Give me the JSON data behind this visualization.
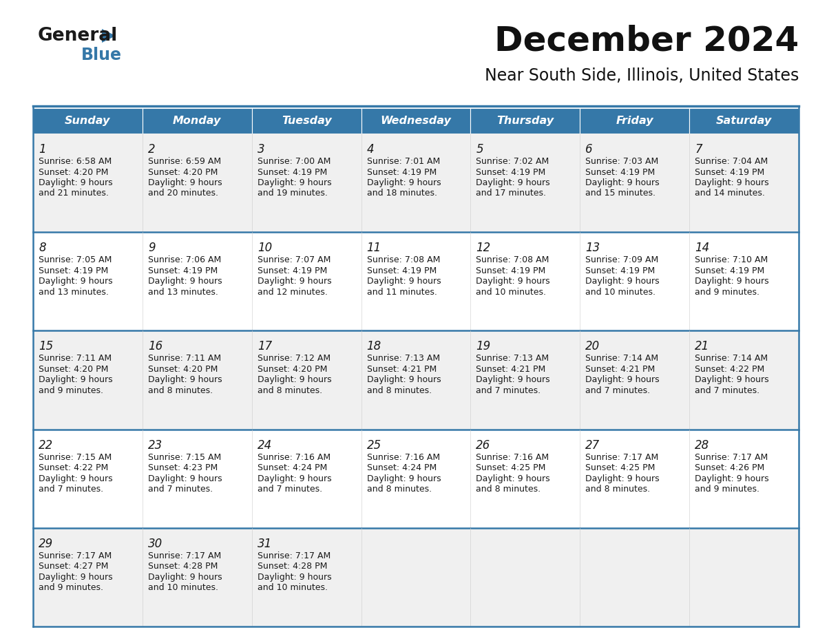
{
  "title": "December 2024",
  "subtitle": "Near South Side, Illinois, United States",
  "header_color": "#3578a8",
  "header_text_color": "#ffffff",
  "cell_bg_even": "#f0f0f0",
  "cell_bg_odd": "#ffffff",
  "border_color": "#3578a8",
  "line_color_week": "#3578a8",
  "text_color": "#1a1a1a",
  "day_names": [
    "Sunday",
    "Monday",
    "Tuesday",
    "Wednesday",
    "Thursday",
    "Friday",
    "Saturday"
  ],
  "weeks": [
    [
      {
        "day": "1",
        "sunrise": "6:58 AM",
        "sunset": "4:20 PM",
        "daylight1": "9 hours",
        "daylight2": "and 21 minutes."
      },
      {
        "day": "2",
        "sunrise": "6:59 AM",
        "sunset": "4:20 PM",
        "daylight1": "9 hours",
        "daylight2": "and 20 minutes."
      },
      {
        "day": "3",
        "sunrise": "7:00 AM",
        "sunset": "4:19 PM",
        "daylight1": "9 hours",
        "daylight2": "and 19 minutes."
      },
      {
        "day": "4",
        "sunrise": "7:01 AM",
        "sunset": "4:19 PM",
        "daylight1": "9 hours",
        "daylight2": "and 18 minutes."
      },
      {
        "day": "5",
        "sunrise": "7:02 AM",
        "sunset": "4:19 PM",
        "daylight1": "9 hours",
        "daylight2": "and 17 minutes."
      },
      {
        "day": "6",
        "sunrise": "7:03 AM",
        "sunset": "4:19 PM",
        "daylight1": "9 hours",
        "daylight2": "and 15 minutes."
      },
      {
        "day": "7",
        "sunrise": "7:04 AM",
        "sunset": "4:19 PM",
        "daylight1": "9 hours",
        "daylight2": "and 14 minutes."
      }
    ],
    [
      {
        "day": "8",
        "sunrise": "7:05 AM",
        "sunset": "4:19 PM",
        "daylight1": "9 hours",
        "daylight2": "and 13 minutes."
      },
      {
        "day": "9",
        "sunrise": "7:06 AM",
        "sunset": "4:19 PM",
        "daylight1": "9 hours",
        "daylight2": "and 13 minutes."
      },
      {
        "day": "10",
        "sunrise": "7:07 AM",
        "sunset": "4:19 PM",
        "daylight1": "9 hours",
        "daylight2": "and 12 minutes."
      },
      {
        "day": "11",
        "sunrise": "7:08 AM",
        "sunset": "4:19 PM",
        "daylight1": "9 hours",
        "daylight2": "and 11 minutes."
      },
      {
        "day": "12",
        "sunrise": "7:08 AM",
        "sunset": "4:19 PM",
        "daylight1": "9 hours",
        "daylight2": "and 10 minutes."
      },
      {
        "day": "13",
        "sunrise": "7:09 AM",
        "sunset": "4:19 PM",
        "daylight1": "9 hours",
        "daylight2": "and 10 minutes."
      },
      {
        "day": "14",
        "sunrise": "7:10 AM",
        "sunset": "4:19 PM",
        "daylight1": "9 hours",
        "daylight2": "and 9 minutes."
      }
    ],
    [
      {
        "day": "15",
        "sunrise": "7:11 AM",
        "sunset": "4:20 PM",
        "daylight1": "9 hours",
        "daylight2": "and 9 minutes."
      },
      {
        "day": "16",
        "sunrise": "7:11 AM",
        "sunset": "4:20 PM",
        "daylight1": "9 hours",
        "daylight2": "and 8 minutes."
      },
      {
        "day": "17",
        "sunrise": "7:12 AM",
        "sunset": "4:20 PM",
        "daylight1": "9 hours",
        "daylight2": "and 8 minutes."
      },
      {
        "day": "18",
        "sunrise": "7:13 AM",
        "sunset": "4:21 PM",
        "daylight1": "9 hours",
        "daylight2": "and 8 minutes."
      },
      {
        "day": "19",
        "sunrise": "7:13 AM",
        "sunset": "4:21 PM",
        "daylight1": "9 hours",
        "daylight2": "and 7 minutes."
      },
      {
        "day": "20",
        "sunrise": "7:14 AM",
        "sunset": "4:21 PM",
        "daylight1": "9 hours",
        "daylight2": "and 7 minutes."
      },
      {
        "day": "21",
        "sunrise": "7:14 AM",
        "sunset": "4:22 PM",
        "daylight1": "9 hours",
        "daylight2": "and 7 minutes."
      }
    ],
    [
      {
        "day": "22",
        "sunrise": "7:15 AM",
        "sunset": "4:22 PM",
        "daylight1": "9 hours",
        "daylight2": "and 7 minutes."
      },
      {
        "day": "23",
        "sunrise": "7:15 AM",
        "sunset": "4:23 PM",
        "daylight1": "9 hours",
        "daylight2": "and 7 minutes."
      },
      {
        "day": "24",
        "sunrise": "7:16 AM",
        "sunset": "4:24 PM",
        "daylight1": "9 hours",
        "daylight2": "and 7 minutes."
      },
      {
        "day": "25",
        "sunrise": "7:16 AM",
        "sunset": "4:24 PM",
        "daylight1": "9 hours",
        "daylight2": "and 8 minutes."
      },
      {
        "day": "26",
        "sunrise": "7:16 AM",
        "sunset": "4:25 PM",
        "daylight1": "9 hours",
        "daylight2": "and 8 minutes."
      },
      {
        "day": "27",
        "sunrise": "7:17 AM",
        "sunset": "4:25 PM",
        "daylight1": "9 hours",
        "daylight2": "and 8 minutes."
      },
      {
        "day": "28",
        "sunrise": "7:17 AM",
        "sunset": "4:26 PM",
        "daylight1": "9 hours",
        "daylight2": "and 9 minutes."
      }
    ],
    [
      {
        "day": "29",
        "sunrise": "7:17 AM",
        "sunset": "4:27 PM",
        "daylight1": "9 hours",
        "daylight2": "and 9 minutes."
      },
      {
        "day": "30",
        "sunrise": "7:17 AM",
        "sunset": "4:28 PM",
        "daylight1": "9 hours",
        "daylight2": "and 10 minutes."
      },
      {
        "day": "31",
        "sunrise": "7:17 AM",
        "sunset": "4:28 PM",
        "daylight1": "9 hours",
        "daylight2": "and 10 minutes."
      },
      null,
      null,
      null,
      null
    ]
  ],
  "logo_general_color": "#1a1a1a",
  "logo_blue_color": "#3578a8",
  "logo_triangle_color": "#3578a8",
  "title_fontsize": 36,
  "subtitle_fontsize": 17,
  "header_fontsize": 11.5,
  "day_number_fontsize": 12,
  "cell_text_fontsize": 9
}
